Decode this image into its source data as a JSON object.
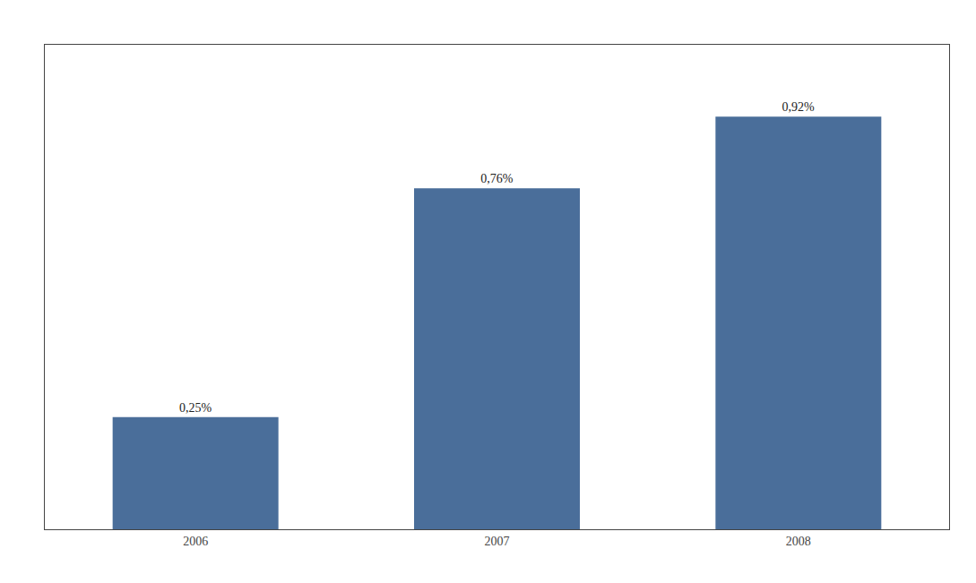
{
  "chart_data": {
    "type": "bar",
    "categories": [
      "2006",
      "2007",
      "2008"
    ],
    "values": [
      0.25,
      0.76,
      0.92
    ],
    "value_labels": [
      "0,25%",
      "0,76%",
      "0,92%"
    ],
    "color": "#4a6e9a",
    "ylim": [
      0,
      1.08
    ],
    "yticks": [],
    "tick_labels": "x",
    "data_labels": true,
    "grid": false
  }
}
